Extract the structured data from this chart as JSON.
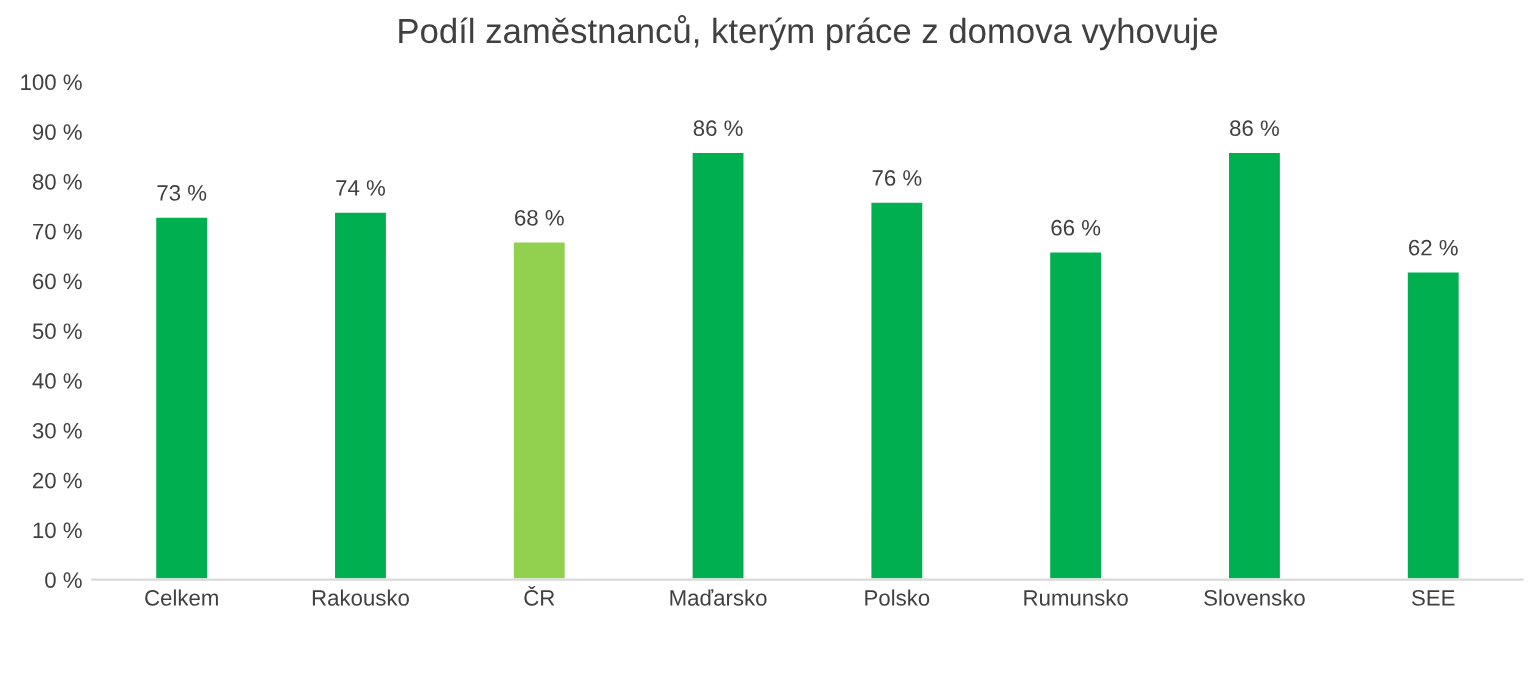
{
  "chart_data": {
    "type": "bar",
    "title": "Podíl zaměstnanců, kterým práce z domova vyhovuje",
    "categories": [
      "Celkem",
      "Rakousko",
      "ČR",
      "Maďarsko",
      "Polsko",
      "Rumunsko",
      "Slovensko",
      "SEE"
    ],
    "values": [
      73,
      74,
      68,
      86,
      76,
      66,
      86,
      62
    ],
    "colors": [
      "#00b050",
      "#00b050",
      "#92d050",
      "#00b050",
      "#00b050",
      "#00b050",
      "#00b050",
      "#00b050"
    ],
    "value_labels": [
      "73 %",
      "74 %",
      "68 %",
      "86 %",
      "76 %",
      "66 %",
      "86 %",
      "62 %"
    ],
    "ylim": [
      0,
      100
    ],
    "yticks": [
      {
        "value": 0,
        "label": "0 %"
      },
      {
        "value": 10,
        "label": "10 %"
      },
      {
        "value": 20,
        "label": "20 %"
      },
      {
        "value": 30,
        "label": "30 %"
      },
      {
        "value": 40,
        "label": "40 %"
      },
      {
        "value": 50,
        "label": "50 %"
      },
      {
        "value": 60,
        "label": "60 %"
      },
      {
        "value": 70,
        "label": "70 %"
      },
      {
        "value": 80,
        "label": "80 %"
      },
      {
        "value": 90,
        "label": "90 %"
      },
      {
        "value": 100,
        "label": "100 %"
      }
    ],
    "grid": false,
    "legend": false
  }
}
